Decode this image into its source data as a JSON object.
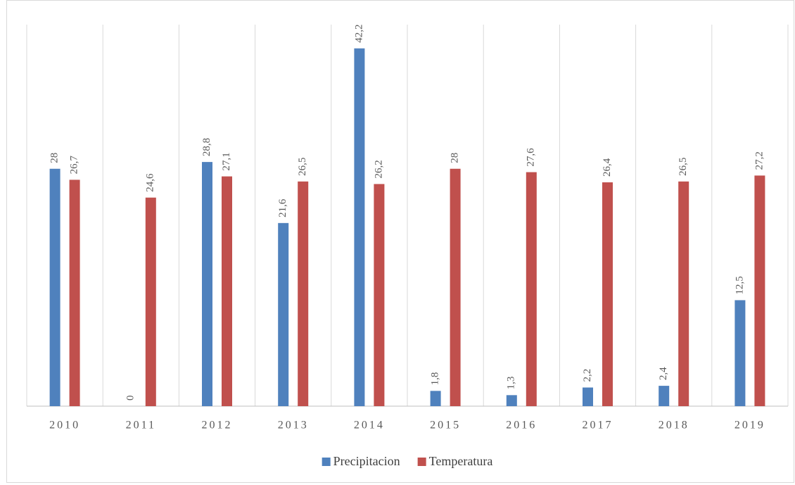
{
  "chart_data": {
    "type": "bar",
    "categories": [
      "2010",
      "2011",
      "2012",
      "2013",
      "2014",
      "2015",
      "2016",
      "2017",
      "2018",
      "2019"
    ],
    "series": [
      {
        "name": "Precipitacion",
        "color": "#4f81bd",
        "values": [
          28,
          0,
          28.8,
          21.6,
          42.2,
          1.8,
          1.3,
          2.2,
          2.4,
          12.5
        ],
        "value_labels": [
          "28",
          "0",
          "28,8",
          "21,6",
          "42,2",
          "1,8",
          "1,3",
          "2,2",
          "2,4",
          "12,5"
        ]
      },
      {
        "name": "Temperatura",
        "color": "#c0504d",
        "values": [
          26.7,
          24.6,
          27.1,
          26.5,
          26.2,
          28,
          27.6,
          26.4,
          26.5,
          27.2
        ],
        "value_labels": [
          "26,7",
          "24,6",
          "27,1",
          "26,5",
          "26,2",
          "28",
          "27,6",
          "26,4",
          "26,5",
          "27,2"
        ]
      }
    ],
    "ylim": [
      0,
      45
    ],
    "legend": "bottom"
  }
}
